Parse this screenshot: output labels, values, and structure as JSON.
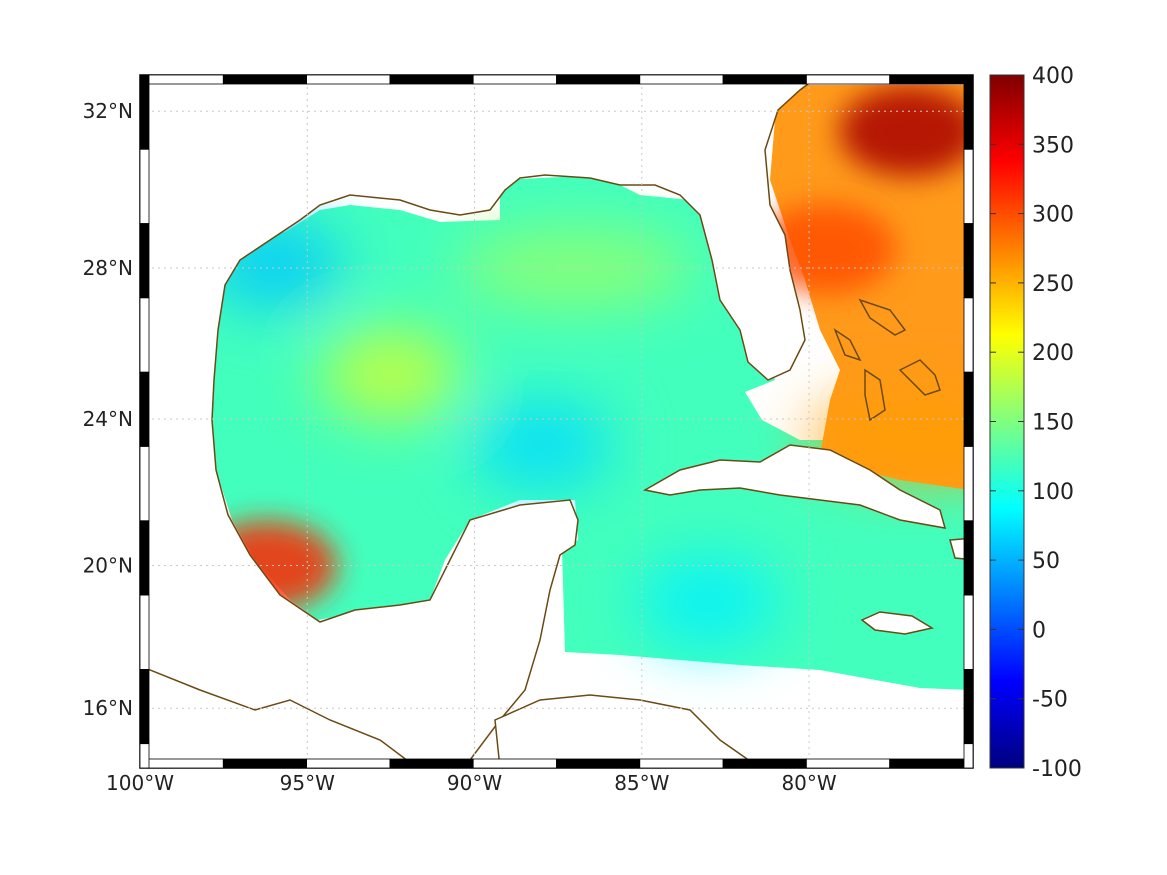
{
  "map": {
    "type": "heatmap",
    "projection": "mercator",
    "lon_range": [
      -100,
      -75.1
    ],
    "lat_range": [
      14.3,
      32.9
    ],
    "grid": true,
    "frame": "checkered-black-white",
    "coastline_color": "#6b4a14",
    "land_fill": "#ffffff",
    "colormap": "jet",
    "x_ticks": [
      {
        "value": -100,
        "label": "100°W"
      },
      {
        "value": -95,
        "label": "95°W"
      },
      {
        "value": -90,
        "label": "90°W"
      },
      {
        "value": -85,
        "label": "85°W"
      },
      {
        "value": -80,
        "label": "80°W"
      }
    ],
    "y_ticks": [
      {
        "value": 32,
        "label": "32°N"
      },
      {
        "value": 28,
        "label": "28°N"
      },
      {
        "value": 24,
        "label": "24°N"
      },
      {
        "value": 20,
        "label": "20°N"
      },
      {
        "value": 16,
        "label": "16°N"
      }
    ]
  },
  "colorbar": {
    "range": [
      -100,
      400
    ],
    "ticks": [
      {
        "value": 400,
        "label": "400"
      },
      {
        "value": 350,
        "label": "350"
      },
      {
        "value": 300,
        "label": "300"
      },
      {
        "value": 250,
        "label": "250"
      },
      {
        "value": 200,
        "label": "200"
      },
      {
        "value": 150,
        "label": "150"
      },
      {
        "value": 100,
        "label": "100"
      },
      {
        "value": 50,
        "label": "50"
      },
      {
        "value": 0,
        "label": "0"
      },
      {
        "value": -50,
        "label": "-50"
      },
      {
        "value": -100,
        "label": "-100"
      }
    ]
  },
  "field": {
    "background_value": 120,
    "features": [
      {
        "name": "veracruz-warm-spot",
        "lon": -96.2,
        "lat": 20.0,
        "value": 320
      },
      {
        "name": "north-gulf-band",
        "lon": -87.0,
        "lat": 28.0,
        "value": 160
      },
      {
        "name": "west-gulf-yellow",
        "lon": -92.5,
        "lat": 25.2,
        "value": 190
      },
      {
        "name": "central-gulf-blue",
        "lon": -88.0,
        "lat": 23.3,
        "value": 70
      },
      {
        "name": "louisiana-blue",
        "lon": -96.0,
        "lat": 28.1,
        "value": 60
      },
      {
        "name": "caribbean-blue",
        "lon": -83.0,
        "lat": 19.0,
        "value": 80
      },
      {
        "name": "gulf-stream-red",
        "lon": -77.0,
        "lat": 31.5,
        "value": 380
      },
      {
        "name": "florida-east-orange",
        "lon": -79.5,
        "lat": 28.5,
        "value": 300
      },
      {
        "name": "bahamas-orange-band",
        "lon": -76.5,
        "lat": 23.5,
        "value": 260
      }
    ]
  }
}
